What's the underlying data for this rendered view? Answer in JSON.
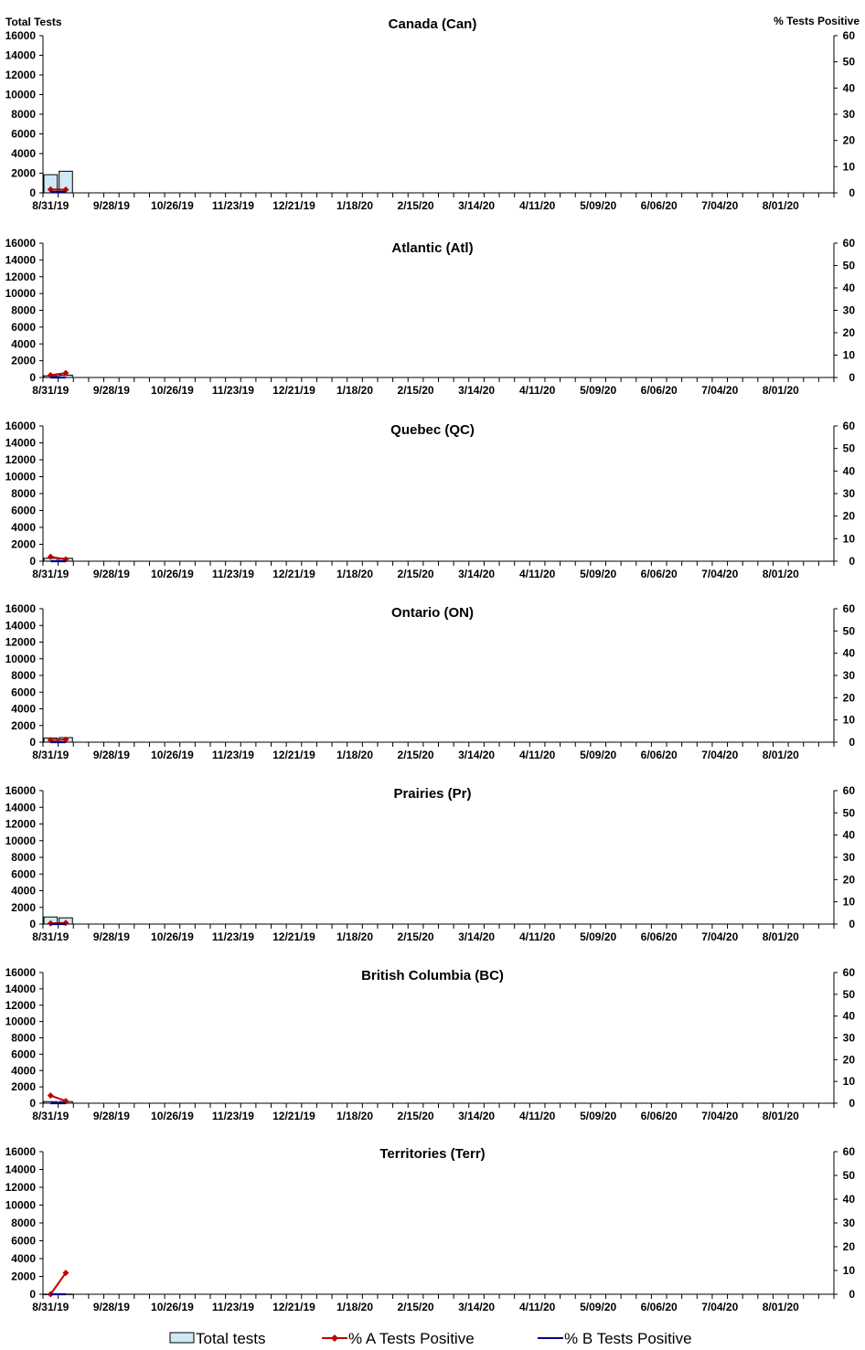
{
  "left_axis_title": "Total Tests",
  "right_axis_title": "% Tests Positive",
  "chart_data": [
    {
      "type": "bar",
      "title": "Canada (Can)",
      "x": [
        "8/31/19",
        "9/07/19"
      ],
      "xticks": [
        "8/31/19",
        "9/28/19",
        "10/26/19",
        "11/23/19",
        "12/21/19",
        "1/18/20",
        "2/15/20",
        "3/14/20",
        "4/11/20",
        "5/09/20",
        "6/06/20",
        "7/04/20",
        "8/01/20"
      ],
      "n_weeks": 52,
      "ylim": [
        0,
        16000
      ],
      "yticks": [
        0,
        2000,
        4000,
        6000,
        8000,
        10000,
        12000,
        14000,
        16000
      ],
      "y2lim": [
        0,
        60
      ],
      "y2ticks": [
        0,
        10,
        20,
        30,
        40,
        50,
        60
      ],
      "series": [
        {
          "name": "Total tests",
          "axis": "left",
          "kind": "bar",
          "values": [
            1850,
            2200
          ]
        },
        {
          "name": "% A Tests Positive",
          "axis": "right",
          "kind": "line",
          "values": [
            1.3,
            1.2
          ]
        },
        {
          "name": "% B Tests Positive",
          "axis": "right",
          "kind": "line",
          "values": [
            0.4,
            0.4
          ]
        }
      ]
    },
    {
      "type": "bar",
      "title": "Atlantic (Atl)",
      "x": [
        "8/31/19",
        "9/07/19"
      ],
      "xticks": [
        "8/31/19",
        "9/28/19",
        "10/26/19",
        "11/23/19",
        "12/21/19",
        "1/18/20",
        "2/15/20",
        "3/14/20",
        "4/11/20",
        "5/09/20",
        "6/06/20",
        "7/04/20",
        "8/01/20"
      ],
      "n_weeks": 52,
      "ylim": [
        0,
        16000
      ],
      "yticks": [
        0,
        2000,
        4000,
        6000,
        8000,
        10000,
        12000,
        14000,
        16000
      ],
      "y2lim": [
        0,
        60
      ],
      "y2ticks": [
        0,
        10,
        20,
        30,
        40,
        50,
        60
      ],
      "series": [
        {
          "name": "Total tests",
          "axis": "left",
          "kind": "bar",
          "values": [
            200,
            280
          ]
        },
        {
          "name": "% A Tests Positive",
          "axis": "right",
          "kind": "line",
          "values": [
            1.0,
            2.0
          ]
        },
        {
          "name": "% B Tests Positive",
          "axis": "right",
          "kind": "line",
          "values": [
            0.0,
            0.0
          ]
        }
      ]
    },
    {
      "type": "bar",
      "title": "Quebec (QC)",
      "x": [
        "8/31/19",
        "9/07/19"
      ],
      "xticks": [
        "8/31/19",
        "9/28/19",
        "10/26/19",
        "11/23/19",
        "12/21/19",
        "1/18/20",
        "2/15/20",
        "3/14/20",
        "4/11/20",
        "5/09/20",
        "6/06/20",
        "7/04/20",
        "8/01/20"
      ],
      "n_weeks": 52,
      "ylim": [
        0,
        16000
      ],
      "yticks": [
        0,
        2000,
        4000,
        6000,
        8000,
        10000,
        12000,
        14000,
        16000
      ],
      "y2lim": [
        0,
        60
      ],
      "y2ticks": [
        0,
        10,
        20,
        30,
        40,
        50,
        60
      ],
      "series": [
        {
          "name": "Total tests",
          "axis": "left",
          "kind": "bar",
          "values": [
            350,
            350
          ]
        },
        {
          "name": "% A Tests Positive",
          "axis": "right",
          "kind": "line",
          "values": [
            2.0,
            0.8
          ]
        },
        {
          "name": "% B Tests Positive",
          "axis": "right",
          "kind": "line",
          "values": [
            0.0,
            0.0
          ]
        }
      ]
    },
    {
      "type": "bar",
      "title": "Ontario (ON)",
      "x": [
        "8/31/19",
        "9/07/19"
      ],
      "xticks": [
        "8/31/19",
        "9/28/19",
        "10/26/19",
        "11/23/19",
        "12/21/19",
        "1/18/20",
        "2/15/20",
        "3/14/20",
        "4/11/20",
        "5/09/20",
        "6/06/20",
        "7/04/20",
        "8/01/20"
      ],
      "n_weeks": 52,
      "ylim": [
        0,
        16000
      ],
      "yticks": [
        0,
        2000,
        4000,
        6000,
        8000,
        10000,
        12000,
        14000,
        16000
      ],
      "y2lim": [
        0,
        60
      ],
      "y2ticks": [
        0,
        10,
        20,
        30,
        40,
        50,
        60
      ],
      "series": [
        {
          "name": "Total tests",
          "axis": "left",
          "kind": "bar",
          "values": [
            500,
            550
          ]
        },
        {
          "name": "% A Tests Positive",
          "axis": "right",
          "kind": "line",
          "values": [
            1.0,
            1.2
          ]
        },
        {
          "name": "% B Tests Positive",
          "axis": "right",
          "kind": "line",
          "values": [
            0.0,
            0.0
          ]
        }
      ]
    },
    {
      "type": "bar",
      "title": "Prairies (Pr)",
      "x": [
        "8/31/19",
        "9/07/19"
      ],
      "xticks": [
        "8/31/19",
        "9/28/19",
        "10/26/19",
        "11/23/19",
        "12/21/19",
        "1/18/20",
        "2/15/20",
        "3/14/20",
        "4/11/20",
        "5/09/20",
        "6/06/20",
        "7/04/20",
        "8/01/20"
      ],
      "n_weeks": 52,
      "ylim": [
        0,
        16000
      ],
      "yticks": [
        0,
        2000,
        4000,
        6000,
        8000,
        10000,
        12000,
        14000,
        16000
      ],
      "y2lim": [
        0,
        60
      ],
      "y2ticks": [
        0,
        10,
        20,
        30,
        40,
        50,
        60
      ],
      "series": [
        {
          "name": "Total tests",
          "axis": "left",
          "kind": "bar",
          "values": [
            850,
            750
          ]
        },
        {
          "name": "% A Tests Positive",
          "axis": "right",
          "kind": "line",
          "values": [
            0.3,
            0.5
          ]
        },
        {
          "name": "% B Tests Positive",
          "axis": "right",
          "kind": "line",
          "values": [
            0.0,
            0.0
          ]
        }
      ]
    },
    {
      "type": "bar",
      "title": "British Columbia (BC)",
      "x": [
        "8/31/19",
        "9/07/19"
      ],
      "xticks": [
        "8/31/19",
        "9/28/19",
        "10/26/19",
        "11/23/19",
        "12/21/19",
        "1/18/20",
        "2/15/20",
        "3/14/20",
        "4/11/20",
        "5/09/20",
        "6/06/20",
        "7/04/20",
        "8/01/20"
      ],
      "n_weeks": 52,
      "ylim": [
        0,
        16000
      ],
      "yticks": [
        0,
        2000,
        4000,
        6000,
        8000,
        10000,
        12000,
        14000,
        16000
      ],
      "y2lim": [
        0,
        60
      ],
      "y2ticks": [
        0,
        10,
        20,
        30,
        40,
        50,
        60
      ],
      "series": [
        {
          "name": "Total tests",
          "axis": "left",
          "kind": "bar",
          "values": [
            200,
            200
          ]
        },
        {
          "name": "% A Tests Positive",
          "axis": "right",
          "kind": "line",
          "values": [
            3.5,
            1.0
          ]
        },
        {
          "name": "% B Tests Positive",
          "axis": "right",
          "kind": "line",
          "values": [
            0.0,
            0.0
          ]
        }
      ]
    },
    {
      "type": "bar",
      "title": "Territories (Terr)",
      "x": [
        "8/31/19",
        "9/07/19"
      ],
      "xticks": [
        "8/31/19",
        "9/28/19",
        "10/26/19",
        "11/23/19",
        "12/21/19",
        "1/18/20",
        "2/15/20",
        "3/14/20",
        "4/11/20",
        "5/09/20",
        "6/06/20",
        "7/04/20",
        "8/01/20"
      ],
      "n_weeks": 52,
      "ylim": [
        0,
        16000
      ],
      "yticks": [
        0,
        2000,
        4000,
        6000,
        8000,
        10000,
        12000,
        14000,
        16000
      ],
      "y2lim": [
        0,
        60
      ],
      "y2ticks": [
        0,
        10,
        20,
        30,
        40,
        50,
        60
      ],
      "series": [
        {
          "name": "Total tests",
          "axis": "left",
          "kind": "bar",
          "values": [
            10,
            15
          ]
        },
        {
          "name": "% A Tests Positive",
          "axis": "right",
          "kind": "line",
          "values": [
            0.0,
            9.0
          ]
        },
        {
          "name": "% B Tests Positive",
          "axis": "right",
          "kind": "line",
          "values": [
            0.0,
            0.0
          ]
        }
      ]
    }
  ],
  "legend": {
    "position": "bottom",
    "items": [
      {
        "label": "Total tests",
        "kind": "bar"
      },
      {
        "label": "% A Tests Positive",
        "kind": "line-marker"
      },
      {
        "label": "% B Tests Positive",
        "kind": "line"
      }
    ]
  },
  "colors": {
    "bar_fill": "#cfe9f5",
    "bar_stroke": "#000000",
    "series_a": "#c00000",
    "series_b": "#000080"
  }
}
